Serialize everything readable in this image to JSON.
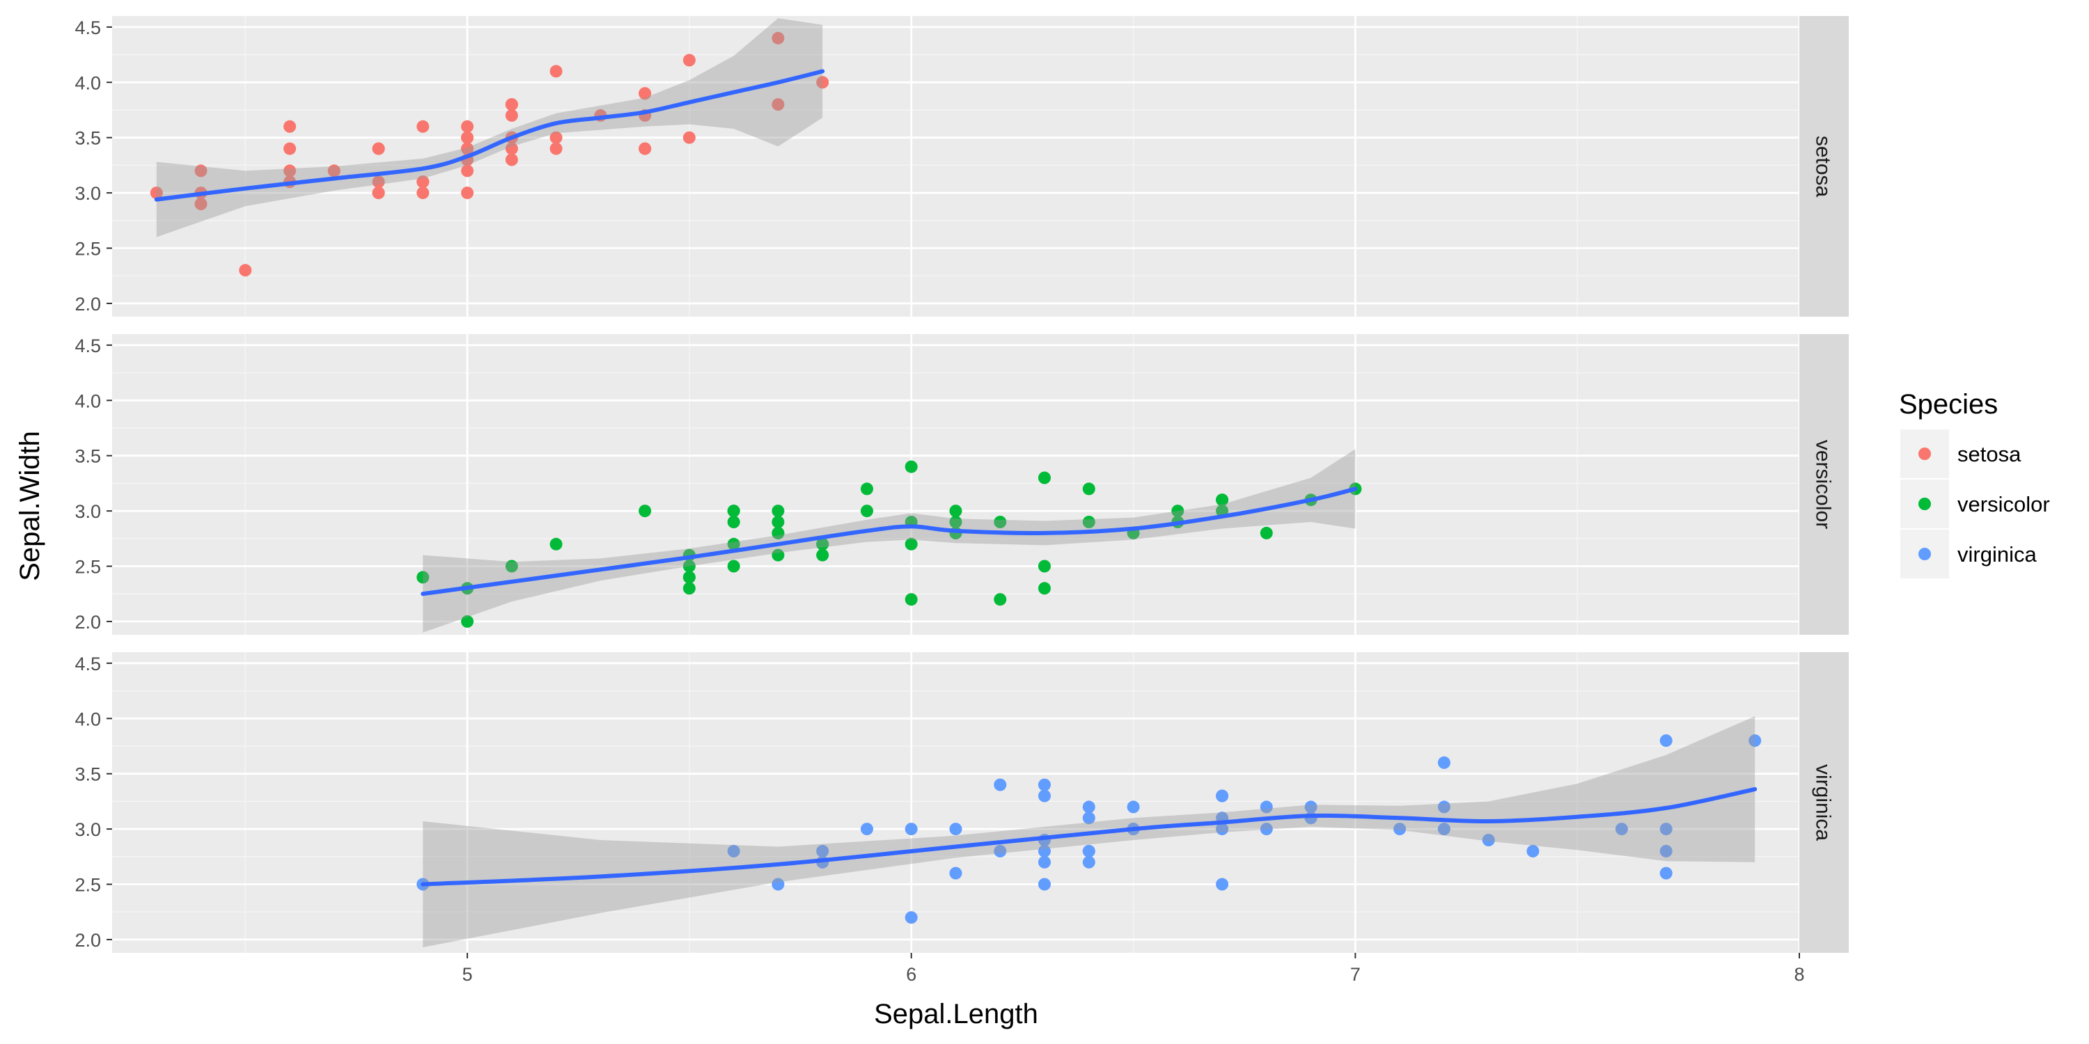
{
  "chart_data": {
    "type": "scatter",
    "facet_by": "Species",
    "xlabel": "Sepal.Length",
    "ylabel": "Sepal.Width",
    "xlim": [
      4.2,
      8.0
    ],
    "ylim": [
      1.88,
      4.6
    ],
    "x_ticks": [
      5,
      6,
      7,
      8
    ],
    "x_tick_labels": [
      "5",
      "6",
      "7",
      "8"
    ],
    "y_ticks": [
      2.0,
      2.5,
      3.0,
      3.5,
      4.0,
      4.5
    ],
    "y_tick_labels": [
      "2.0",
      "2.5",
      "3.0",
      "3.5",
      "4.0",
      "4.5"
    ],
    "grid": true,
    "smooth": "loess with confidence band",
    "legend": {
      "title": "Species",
      "position": "right",
      "entries": [
        "setosa",
        "versicolor",
        "virginica"
      ]
    },
    "colors": {
      "setosa": "#F8766D",
      "versicolor": "#00BA38",
      "virginica": "#619CFF",
      "smooth_line": "#3366FF",
      "panel_bg": "#EBEBEB",
      "strip_bg": "#D9D9D9"
    },
    "series": [
      {
        "name": "setosa",
        "x": [
          5.1,
          4.9,
          4.7,
          4.6,
          5.0,
          5.4,
          4.6,
          5.0,
          4.4,
          4.9,
          5.4,
          4.8,
          4.8,
          4.3,
          5.8,
          5.7,
          5.4,
          5.1,
          5.7,
          5.1,
          5.4,
          5.1,
          4.6,
          5.1,
          4.8,
          5.0,
          5.0,
          5.2,
          5.2,
          4.7,
          4.8,
          5.4,
          5.2,
          5.5,
          4.9,
          5.0,
          5.5,
          4.9,
          4.4,
          5.1,
          5.0,
          4.5,
          4.4,
          5.0,
          5.1,
          4.8,
          5.1,
          4.6,
          5.3,
          5.0
        ],
        "y": [
          3.5,
          3.0,
          3.2,
          3.1,
          3.6,
          3.9,
          3.4,
          3.4,
          2.9,
          3.1,
          3.7,
          3.4,
          3.0,
          3.0,
          4.0,
          4.4,
          3.9,
          3.5,
          3.8,
          3.8,
          3.4,
          3.7,
          3.6,
          3.3,
          3.4,
          3.0,
          3.4,
          3.5,
          3.4,
          3.2,
          3.1,
          3.4,
          4.1,
          4.2,
          3.1,
          3.2,
          3.5,
          3.6,
          3.0,
          3.4,
          3.5,
          2.3,
          3.2,
          3.5,
          3.8,
          3.0,
          3.8,
          3.2,
          3.7,
          3.3
        ],
        "smooth": {
          "x": [
            4.3,
            4.5,
            4.7,
            4.9,
            5.0,
            5.1,
            5.2,
            5.3,
            5.4,
            5.5,
            5.6,
            5.7,
            5.8
          ],
          "y": [
            2.94,
            3.04,
            3.13,
            3.22,
            3.33,
            3.5,
            3.63,
            3.68,
            3.73,
            3.82,
            3.91,
            4.0,
            4.1
          ],
          "lower": [
            2.6,
            2.88,
            3.02,
            3.13,
            3.25,
            3.42,
            3.54,
            3.57,
            3.6,
            3.62,
            3.58,
            3.42,
            3.68
          ],
          "upper": [
            3.28,
            3.2,
            3.24,
            3.31,
            3.41,
            3.58,
            3.72,
            3.79,
            3.86,
            4.02,
            4.24,
            4.58,
            4.52
          ]
        }
      },
      {
        "name": "versicolor",
        "x": [
          7.0,
          6.4,
          6.9,
          5.5,
          6.5,
          5.7,
          6.3,
          4.9,
          6.6,
          5.2,
          5.0,
          5.9,
          6.0,
          6.1,
          5.6,
          6.7,
          5.6,
          5.8,
          6.2,
          5.6,
          5.9,
          6.1,
          6.3,
          6.1,
          6.4,
          6.6,
          6.8,
          6.7,
          6.0,
          5.7,
          5.5,
          5.5,
          5.8,
          6.0,
          5.4,
          6.0,
          6.7,
          6.3,
          5.6,
          5.5,
          5.5,
          6.1,
          5.8,
          5.0,
          5.6,
          5.7,
          5.7,
          6.2,
          5.1,
          5.7
        ],
        "y": [
          3.2,
          3.2,
          3.1,
          2.3,
          2.8,
          2.8,
          3.3,
          2.4,
          2.9,
          2.7,
          2.0,
          3.0,
          2.2,
          2.9,
          2.9,
          3.1,
          3.0,
          2.7,
          2.2,
          2.5,
          3.2,
          2.8,
          2.5,
          2.8,
          2.9,
          3.0,
          2.8,
          3.0,
          2.9,
          2.6,
          2.4,
          2.4,
          2.7,
          2.7,
          3.0,
          3.4,
          3.1,
          2.3,
          3.0,
          2.5,
          2.6,
          3.0,
          2.6,
          2.3,
          2.7,
          3.0,
          2.9,
          2.9,
          2.5,
          2.8
        ],
        "smooth": {
          "x": [
            4.9,
            5.1,
            5.3,
            5.5,
            5.7,
            5.9,
            6.0,
            6.1,
            6.3,
            6.5,
            6.7,
            6.9,
            7.0
          ],
          "y": [
            2.25,
            2.36,
            2.47,
            2.58,
            2.7,
            2.82,
            2.86,
            2.82,
            2.8,
            2.84,
            2.95,
            3.1,
            3.2
          ],
          "lower": [
            1.9,
            2.18,
            2.37,
            2.5,
            2.62,
            2.72,
            2.74,
            2.71,
            2.69,
            2.74,
            2.84,
            2.9,
            2.84
          ],
          "upper": [
            2.6,
            2.54,
            2.57,
            2.66,
            2.78,
            2.92,
            2.98,
            2.93,
            2.91,
            2.94,
            3.06,
            3.3,
            3.56
          ]
        }
      },
      {
        "name": "virginica",
        "x": [
          6.3,
          5.8,
          7.1,
          6.3,
          6.5,
          7.6,
          4.9,
          7.3,
          6.7,
          7.2,
          6.5,
          6.4,
          6.8,
          5.7,
          5.8,
          6.4,
          6.5,
          7.7,
          7.7,
          6.0,
          6.9,
          5.6,
          7.7,
          6.3,
          6.7,
          7.2,
          6.2,
          6.1,
          6.4,
          7.2,
          7.4,
          7.9,
          6.4,
          6.3,
          6.1,
          7.7,
          6.3,
          6.4,
          6.0,
          6.9,
          6.7,
          6.9,
          5.8,
          6.8,
          6.7,
          6.7,
          6.3,
          6.5,
          6.2,
          5.9
        ],
        "y": [
          3.3,
          2.7,
          3.0,
          2.9,
          3.0,
          3.0,
          2.5,
          2.9,
          2.5,
          3.6,
          3.2,
          2.7,
          3.0,
          2.5,
          2.8,
          3.2,
          3.0,
          3.8,
          2.6,
          2.2,
          3.2,
          2.8,
          2.8,
          2.7,
          3.3,
          3.2,
          2.8,
          3.0,
          2.8,
          3.0,
          2.8,
          3.8,
          2.8,
          2.8,
          2.6,
          3.0,
          3.4,
          3.1,
          3.0,
          3.1,
          3.1,
          3.1,
          2.7,
          3.2,
          3.3,
          3.0,
          2.5,
          3.0,
          3.4,
          3.0
        ],
        "smooth": {
          "x": [
            4.9,
            5.3,
            5.7,
            6.1,
            6.5,
            6.7,
            6.9,
            7.1,
            7.3,
            7.5,
            7.7,
            7.9
          ],
          "y": [
            2.5,
            2.57,
            2.68,
            2.84,
            3.0,
            3.06,
            3.12,
            3.1,
            3.07,
            3.11,
            3.19,
            3.36
          ],
          "lower": [
            1.93,
            2.24,
            2.52,
            2.74,
            2.9,
            2.97,
            3.02,
            2.99,
            2.89,
            2.81,
            2.71,
            2.7
          ],
          "upper": [
            3.07,
            2.9,
            2.84,
            2.94,
            3.1,
            3.15,
            3.22,
            3.21,
            3.25,
            3.41,
            3.67,
            4.02
          ]
        }
      }
    ]
  }
}
